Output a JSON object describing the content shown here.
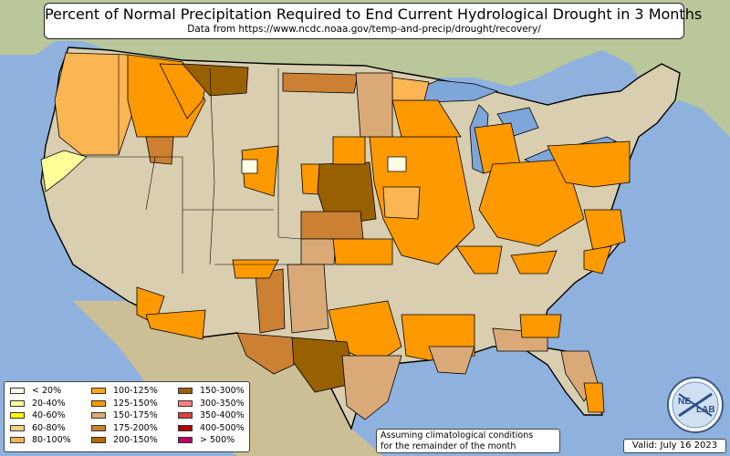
{
  "title": "Percent of Normal Precipitation Required to End Current Hydrological Drought in 3 Months",
  "subtitle": "Data from https://www.ncdc.noaa.gov/temp-and-precip/drought/recovery/",
  "legend": {
    "items": [
      {
        "label": "< 20%",
        "color": "#ffffe6"
      },
      {
        "label": "20-40%",
        "color": "#ffff99"
      },
      {
        "label": "40-60%",
        "color": "#ffff00"
      },
      {
        "label": "60-80%",
        "color": "#f8cf8c"
      },
      {
        "label": "80-100%",
        "color": "#fbb553"
      },
      {
        "label": "100-125%",
        "color": "#ffa71a"
      },
      {
        "label": "125-150%",
        "color": "#ff9900"
      },
      {
        "label": "150-175%",
        "color": "#d9aa78"
      },
      {
        "label": "175-200%",
        "color": "#cc8033"
      },
      {
        "label": "200-150%",
        "color": "#b36b00"
      },
      {
        "label": "150-300%",
        "color": "#996000"
      },
      {
        "label": "300-350%",
        "color": "#ff8080"
      },
      {
        "label": "350-400%",
        "color": "#e04040"
      },
      {
        "label": "400-500%",
        "color": "#b30000"
      },
      {
        "label": "> 500%",
        "color": "#c0006b"
      }
    ]
  },
  "note_line1": "Assuming climatological conditions",
  "note_line2": "for the remainder of the month",
  "valid": "Valid: July 16 2023",
  "logo": {
    "text_left": "NE",
    "text_right": "LAB"
  },
  "colors": {
    "ocean": "#8fb1de",
    "land": "#d9ceb0",
    "canada": "#b9c79a",
    "mexico": "#cdbf95",
    "lakes": "#7ea6d8"
  }
}
